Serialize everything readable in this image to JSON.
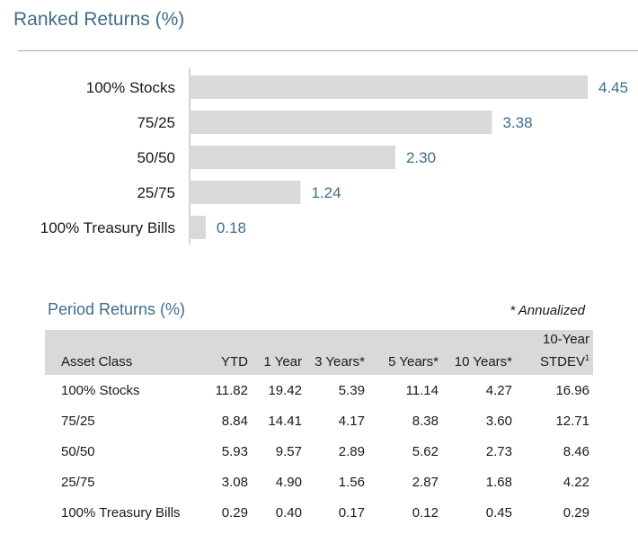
{
  "title": "Ranked Returns (%)",
  "chart_data": {
    "type": "bar",
    "orientation": "horizontal",
    "title": "Ranked Returns (%)",
    "categories": [
      "100% Stocks",
      "75/25",
      "50/50",
      "25/75",
      "100% Treasury Bills"
    ],
    "values": [
      4.45,
      3.38,
      2.3,
      1.24,
      0.18
    ],
    "value_labels": [
      "4.45",
      "3.38",
      "2.30",
      "1.24",
      "0.18"
    ],
    "xlim": [
      0,
      4.45
    ],
    "grid": false,
    "bar_color": "#d9d9d9",
    "label_color": "#3d6e8a"
  },
  "period": {
    "title": "Period Returns (%)",
    "note": "* Annualized",
    "columns": [
      "Asset Class",
      "YTD",
      "1 Year",
      "3 Years*",
      "5 Years*",
      "10 Years*",
      "10-Year STDEV"
    ],
    "stdev_line1": "10-Year",
    "stdev_line2": "STDEV",
    "stdev_sup": "1",
    "rows": [
      [
        "100% Stocks",
        "11.82",
        "19.42",
        "5.39",
        "11.14",
        "4.27",
        "16.96"
      ],
      [
        "75/25",
        "8.84",
        "14.41",
        "4.17",
        "8.38",
        "3.60",
        "12.71"
      ],
      [
        "50/50",
        "5.93",
        "9.57",
        "2.89",
        "5.62",
        "2.73",
        "8.46"
      ],
      [
        "25/75",
        "3.08",
        "4.90",
        "1.56",
        "2.87",
        "1.68",
        "4.22"
      ],
      [
        "100% Treasury Bills",
        "0.29",
        "0.40",
        "0.17",
        "0.12",
        "0.45",
        "0.29"
      ]
    ]
  }
}
